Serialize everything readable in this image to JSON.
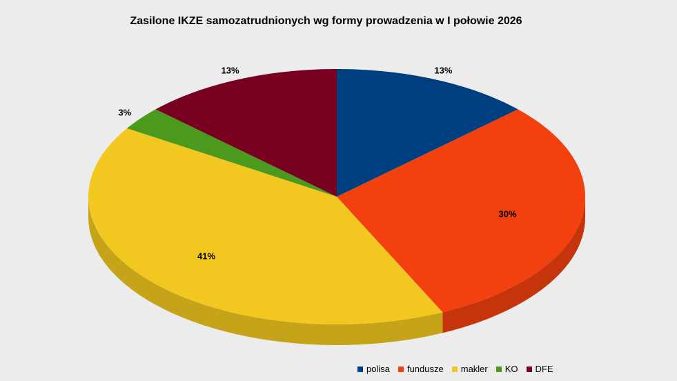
{
  "chart_data": {
    "type": "pie",
    "title": "Zasilone IKZE samozatrudnionych wg formy prowadzenia w I połowie 2026",
    "categories": [
      "polisa",
      "fundusze",
      "makler",
      "KO",
      "DFE"
    ],
    "values": [
      13,
      30,
      41,
      3,
      13
    ],
    "labels": [
      "13%",
      "30%",
      "41%",
      "3%",
      "13%"
    ],
    "colors": [
      "#003f7f",
      "#f2400f",
      "#f2c820",
      "#4b9a1e",
      "#780020"
    ],
    "legend": "bottom-right"
  }
}
